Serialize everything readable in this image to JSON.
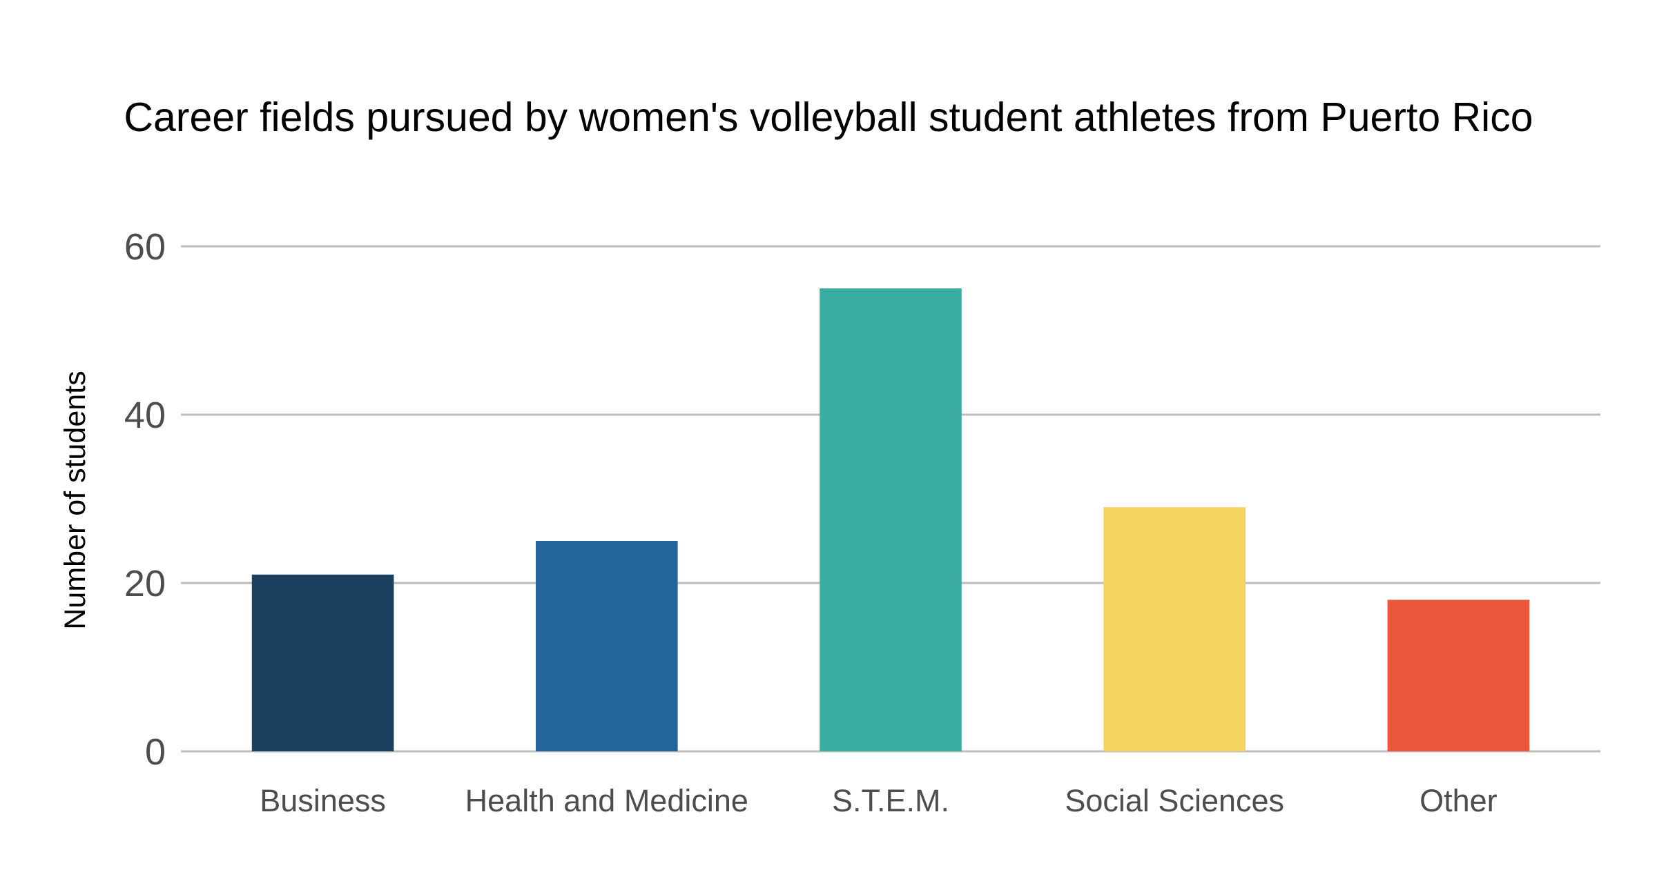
{
  "chart_data": {
    "type": "bar",
    "title": "Career fields pursued by women's volleyball student athletes from Puerto Rico",
    "xlabel": "",
    "ylabel": "Number of students",
    "categories": [
      "Business",
      "Health and Medicine",
      "S.T.E.M.",
      "Social Sciences",
      "Other"
    ],
    "values": [
      21,
      25,
      55,
      29,
      18
    ],
    "colors": [
      "#1b3f5f",
      "#22649b",
      "#3cada3",
      "#f4d45e",
      "#ea573a"
    ],
    "ylim": [
      0,
      60
    ],
    "yticks": [
      "0",
      "20",
      "40",
      "60"
    ],
    "ytick_values": [
      0,
      20,
      40,
      60
    ],
    "grid": true,
    "legend": "none"
  }
}
